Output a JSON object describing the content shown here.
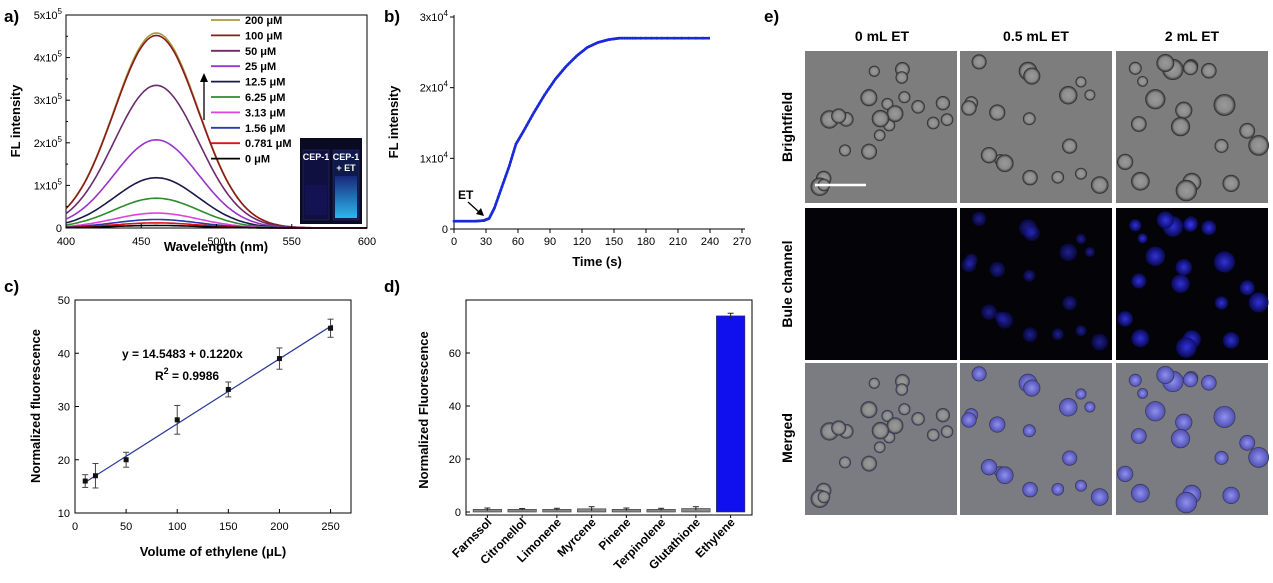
{
  "chart_data": [
    {
      "panel": "a)",
      "type": "line",
      "xlabel": "Wavelength (nm)",
      "ylabel": "FL intensity",
      "xlim": [
        400,
        600
      ],
      "ylim": [
        0,
        500000
      ],
      "xticks": [
        "400",
        "450",
        "500",
        "550",
        "600"
      ],
      "yticks": [
        "0",
        "1x10",
        "2x10",
        "3x10",
        "4x10",
        "5x10"
      ],
      "ytick_exp": "5",
      "peak_wavelength": 460,
      "series": [
        {
          "name": "200 μM",
          "color": "#a89a3c",
          "peak": 458000
        },
        {
          "name": "100 μM",
          "color": "#8b1a1a",
          "peak": 452000
        },
        {
          "name": "50 μM",
          "color": "#6b2a6b",
          "peak": 335000
        },
        {
          "name": "25 μM",
          "color": "#9933cc",
          "peak": 207000
        },
        {
          "name": "12.5 μM",
          "color": "#1a1a4a",
          "peak": 118000
        },
        {
          "name": "6.25 μM",
          "color": "#2e8b2e",
          "peak": 70000
        },
        {
          "name": "3.13 μM",
          "color": "#e040e0",
          "peak": 35000
        },
        {
          "name": "1.56 μM",
          "color": "#2a3aa8",
          "peak": 20000
        },
        {
          "name": "0.781 μM",
          "color": "#e01010",
          "peak": 12000
        },
        {
          "name": "0 μM",
          "color": "#000000",
          "peak": 6000
        }
      ],
      "inset": {
        "left_label": "CEP-1",
        "right_label_line1": "CEP-1",
        "right_label_line2": "+ ET"
      }
    },
    {
      "panel": "b)",
      "type": "line",
      "xlabel": "Time (s)",
      "ylabel": "FL intensity",
      "xlim": [
        0,
        270
      ],
      "ylim": [
        0,
        30000
      ],
      "xticks": [
        "0",
        "30",
        "60",
        "90",
        "120",
        "150",
        "180",
        "210",
        "240",
        "270"
      ],
      "yticks": [
        "0",
        "1x10",
        "2x10",
        "3x10"
      ],
      "ytick_exp": "4",
      "annotation": "ET",
      "series": [
        {
          "color": "#1a2ad8",
          "x": [
            0,
            10,
            20,
            28,
            33,
            38,
            45,
            52,
            58,
            65,
            75,
            85,
            95,
            105,
            115,
            125,
            135,
            145,
            155,
            170,
            200,
            240
          ],
          "y": [
            1100,
            1100,
            1100,
            1200,
            1500,
            3000,
            6000,
            9000,
            12000,
            13800,
            16500,
            19000,
            21200,
            23000,
            24500,
            25700,
            26400,
            26800,
            27000,
            27000,
            27000,
            27000
          ]
        }
      ]
    },
    {
      "panel": "c)",
      "type": "scatter",
      "xlabel": "Volume of ethylene (μL)",
      "ylabel": "Normalized fluorescence",
      "xlim": [
        0,
        270
      ],
      "ylim": [
        10,
        50
      ],
      "xticks": [
        "0",
        "50",
        "100",
        "150",
        "200",
        "250"
      ],
      "yticks": [
        "10",
        "20",
        "30",
        "40",
        "50"
      ],
      "x": [
        10,
        20,
        50,
        100,
        150,
        200,
        250
      ],
      "y": [
        16.0,
        17.0,
        20.0,
        27.5,
        33.2,
        39.0,
        44.7
      ],
      "err": [
        1.2,
        2.3,
        1.4,
        2.7,
        1.4,
        2.0,
        1.7
      ],
      "fit": {
        "intercept": 14.5483,
        "slope": 0.122
      },
      "equation": "y = 14.5483 + 0.1220x",
      "r2_label": "R",
      "r2_sup": "2",
      "r2_value": " = 0.9986"
    },
    {
      "panel": "d)",
      "type": "bar",
      "ylabel": "Normalized Fluorescence",
      "ylim": [
        0,
        80
      ],
      "yticks": [
        "0",
        "20",
        "40",
        "60"
      ],
      "categories": [
        "Farnssol",
        "Citronellol",
        "Limonene",
        "Myrcene",
        "Pinene",
        "Terpinolene",
        "Glutathione",
        "Ethylene"
      ],
      "values": [
        1.0,
        1.0,
        1.0,
        1.2,
        1.0,
        1.0,
        1.3,
        74.0
      ],
      "err": [
        0.5,
        0.3,
        0.4,
        0.8,
        0.5,
        0.4,
        0.7,
        1.0
      ],
      "colors": [
        "#888888",
        "#888888",
        "#888888",
        "#888888",
        "#888888",
        "#888888",
        "#888888",
        "#1010ee"
      ]
    }
  ],
  "panel_e": {
    "label": "e)",
    "columns": [
      "0 mL ET",
      "0.5 mL ET",
      "2 mL ET"
    ],
    "rows": [
      "Brightfield",
      "Bule channel",
      "Merged"
    ]
  }
}
